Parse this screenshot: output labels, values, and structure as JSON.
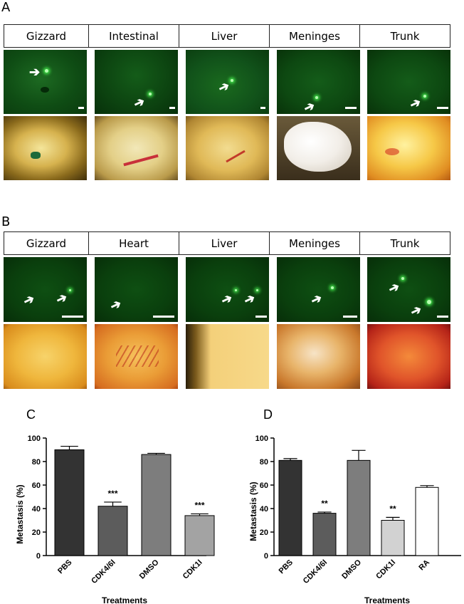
{
  "panel_a": {
    "letter": "A",
    "tiles": [
      {
        "label": "Gizzard"
      },
      {
        "label": "Intestinal"
      },
      {
        "label": "Liver"
      },
      {
        "label": "Meninges"
      },
      {
        "label": "Trunk"
      }
    ]
  },
  "panel_b": {
    "letter": "B",
    "tiles": [
      {
        "label": "Gizzard"
      },
      {
        "label": "Heart"
      },
      {
        "label": "Liver"
      },
      {
        "label": "Meninges"
      },
      {
        "label": "Trunk"
      }
    ]
  },
  "colors": {
    "fluorescence_bg": "#0f4a14",
    "bar_pbs": "#333333",
    "bar_cdk46": "#5c5c5c",
    "bar_dmso": "#7d7d7d",
    "bar_cdk1_c": "#a3a3a3",
    "bar_cdk1_d": "#d2d2d2",
    "bar_ra": "#ffffff"
  },
  "chart_data": [
    {
      "panel": "C",
      "type": "bar",
      "categories": [
        "PBS",
        "CDK4/6I",
        "DMSO",
        "CDK1I"
      ],
      "values": [
        90,
        42,
        86,
        34
      ],
      "errors": [
        3,
        3.5,
        1,
        1.5
      ],
      "significance": [
        "",
        "***",
        "",
        "***"
      ],
      "xlabel": "Treatments",
      "ylabel": "Metastasis (%)",
      "ylim": [
        0,
        100
      ],
      "yticks": [
        0,
        20,
        40,
        60,
        80,
        100
      ],
      "grid": false
    },
    {
      "panel": "D",
      "type": "bar",
      "categories": [
        "PBS",
        "CDK4/6I",
        "DMSO",
        "CDK1I",
        "RA"
      ],
      "values": [
        81,
        36,
        81,
        30,
        58
      ],
      "errors": [
        1.5,
        1,
        8.5,
        2.5,
        1.5
      ],
      "significance": [
        "",
        "**",
        "",
        "**",
        ""
      ],
      "xlabel": "Treatments",
      "ylabel": "Metastasis (%)",
      "ylim": [
        0,
        100
      ],
      "yticks": [
        0,
        20,
        40,
        60,
        80,
        100
      ],
      "grid": false
    }
  ]
}
